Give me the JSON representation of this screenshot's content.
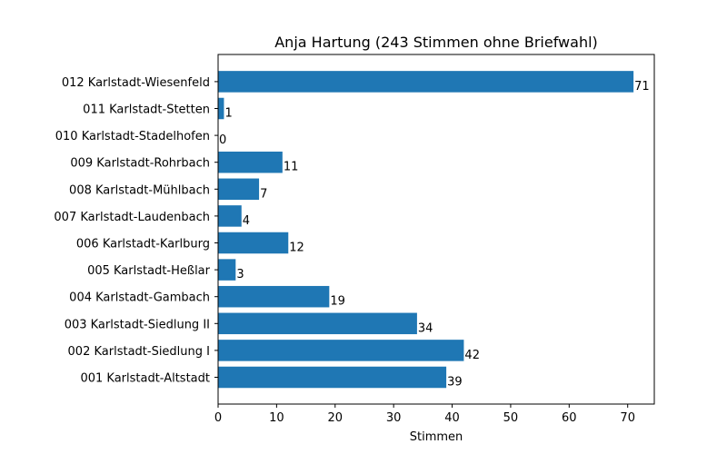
{
  "chart_data": {
    "type": "bar",
    "orientation": "horizontal",
    "title": "Anja Hartung (243 Stimmen ohne Briefwahl)",
    "xlabel": "Stimmen",
    "ylabel": "",
    "categories": [
      "001 Karlstadt-Altstadt",
      "002 Karlstadt-Siedlung I",
      "003 Karlstadt-Siedlung II",
      "004 Karlstadt-Gambach",
      "005 Karlstadt-Heßlar",
      "006 Karlstadt-Karlburg",
      "007 Karlstadt-Laudenbach",
      "008 Karlstadt-Mühlbach",
      "009 Karlstadt-Rohrbach",
      "010 Karlstadt-Stadelhofen",
      "011 Karlstadt-Stetten",
      "012 Karlstadt-Wiesenfeld"
    ],
    "values": [
      39,
      42,
      34,
      19,
      3,
      12,
      4,
      7,
      11,
      0,
      1,
      71
    ],
    "xlim": [
      0,
      74.55
    ],
    "xticks": [
      0,
      10,
      20,
      30,
      40,
      50,
      60,
      70
    ],
    "bar_color": "#1f77b4",
    "grid": false,
    "legend": "none"
  }
}
